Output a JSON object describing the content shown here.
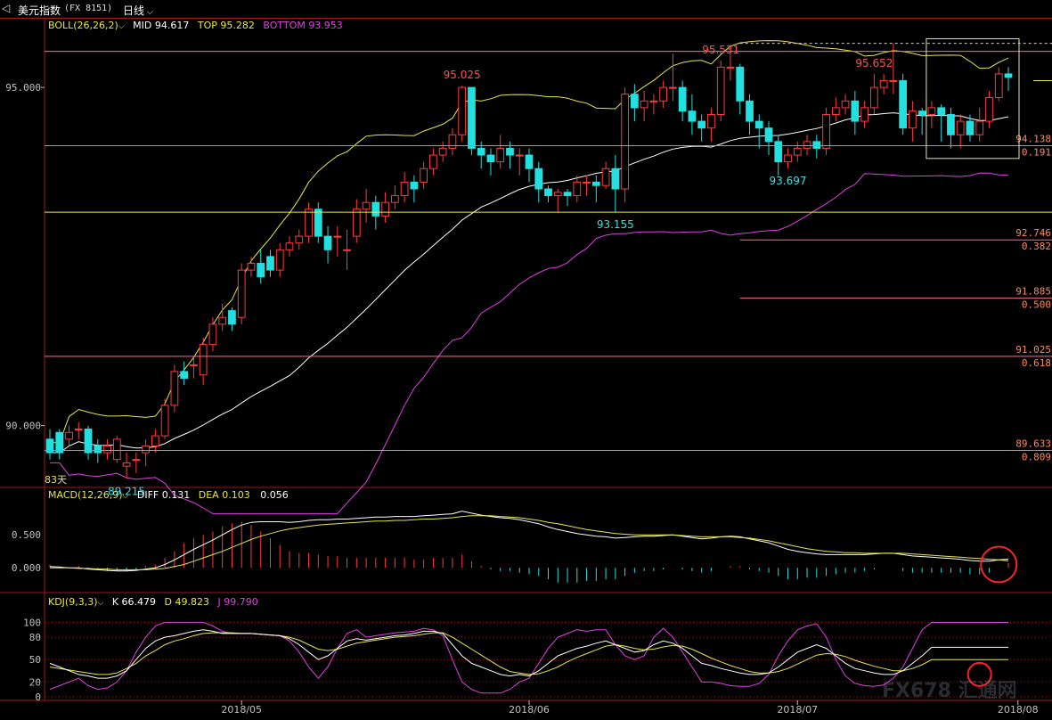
{
  "header": {
    "back_icon": "back-arrow-icon",
    "title": "美元指数",
    "code": "(FX 8151)",
    "period": "日线",
    "period_icon": "chevron-down-icon"
  },
  "boll": {
    "label": "BOLL(26,26,2)",
    "mid_label": "MID",
    "mid": "94.617",
    "top_label": "TOP",
    "top": "95.282",
    "bottom_label": "BOTTOM",
    "bottom": "93.953"
  },
  "macd": {
    "label": "MACD(12,26,9)",
    "diff_label": "DIFF",
    "diff": "0.131",
    "dea_label": "DEA",
    "dea": "0.103",
    "macd_value": "0.056"
  },
  "kdj": {
    "label": "KDJ(9,3,3)",
    "k_label": "K",
    "k": "66.479",
    "d_label": "D",
    "d": "49.823",
    "j_label": "J",
    "j": "99.790"
  },
  "colors": {
    "up": "#ff3a3a",
    "down": "#23e0e0",
    "mid": "#ffffff",
    "boll_band": "#e6e64a",
    "bottom": "#e040e0",
    "fib": "#ff6b8a",
    "axis": "#a01818",
    "tick": "#c0c0c0",
    "circle": "#ff2222"
  },
  "watermark": "FX678 汇通网",
  "count_label": "83天",
  "chart_data": [
    {
      "type": "candlestick",
      "title": "BOLL(26,26,2)",
      "ylim": [
        89.1,
        95.95
      ],
      "yticks": [
        "95.000",
        "90.000"
      ],
      "xticks": [
        "2018/05",
        "2018/06",
        "2018/07",
        "2018/08"
      ],
      "annotations": [
        {
          "label": "95.025",
          "index": 43,
          "kind": "high"
        },
        {
          "label": "95.531",
          "index": 70,
          "kind": "high"
        },
        {
          "label": "95.652",
          "index": 86,
          "kind": "high"
        },
        {
          "label": "93.155",
          "index": 59,
          "kind": "low"
        },
        {
          "label": "93.697",
          "index": 77,
          "kind": "low"
        },
        {
          "label": "89.215",
          "index": 8,
          "kind": "low"
        }
      ],
      "fibonacci": [
        {
          "price": "95.652",
          "ratio": "",
          "value": 95.652
        },
        {
          "price": "94.138",
          "ratio": "0.191",
          "value": 94.138
        },
        {
          "price": "93.155",
          "ratio": "",
          "value": 93.155
        },
        {
          "price": "92.746",
          "ratio": "0.382",
          "value": 92.746
        },
        {
          "price": "91.885",
          "ratio": "0.500",
          "value": 91.885
        },
        {
          "price": "91.025",
          "ratio": "0.618",
          "value": 91.025
        },
        {
          "price": "89.633",
          "ratio": "0.809",
          "value": 89.633
        }
      ],
      "series_open": [
        89.8,
        89.9,
        89.8,
        89.95,
        89.95,
        89.7,
        89.6,
        89.5,
        89.4,
        89.5,
        89.6,
        89.7,
        89.85,
        90.3,
        90.8,
        90.9,
        90.75,
        91.2,
        91.5,
        91.7,
        91.6,
        92.3,
        92.4,
        92.5,
        92.3,
        92.6,
        92.7,
        92.8,
        93.2,
        92.8,
        92.8,
        92.6,
        92.8,
        93.2,
        93.3,
        93.1,
        93.3,
        93.4,
        93.6,
        93.6,
        93.8,
        94.0,
        94.1,
        94.3,
        95.0,
        94.1,
        94.0,
        93.9,
        94.1,
        94.0,
        94.0,
        93.8,
        93.5,
        93.4,
        93.45,
        93.4,
        93.6,
        93.6,
        93.55,
        93.8,
        93.5,
        94.9,
        94.7,
        94.8,
        94.8,
        95.0,
        95.0,
        94.65,
        94.5,
        94.4,
        94.6,
        95.3,
        95.3,
        94.8,
        94.5,
        94.4,
        94.2,
        93.9,
        94.0,
        94.1,
        94.2,
        94.1,
        94.6,
        94.7,
        94.8,
        94.5,
        94.7,
        95.0,
        95.1,
        95.1,
        94.4,
        94.65,
        94.6,
        94.7,
        94.6,
        94.3,
        94.5,
        94.3,
        94.5,
        94.85,
        95.2
      ],
      "series_close": [
        89.6,
        89.6,
        89.9,
        89.95,
        89.6,
        89.6,
        89.7,
        89.8,
        89.45,
        89.5,
        89.7,
        89.85,
        90.3,
        90.8,
        90.7,
        90.9,
        91.2,
        91.5,
        91.6,
        91.5,
        92.3,
        92.4,
        92.2,
        92.3,
        92.6,
        92.7,
        92.8,
        93.2,
        92.8,
        92.6,
        92.8,
        92.6,
        93.2,
        93.3,
        93.1,
        93.3,
        93.4,
        93.6,
        93.5,
        93.8,
        94.0,
        94.1,
        94.3,
        95.0,
        94.1,
        94.0,
        93.9,
        94.1,
        94.0,
        94.0,
        93.8,
        93.5,
        93.4,
        93.45,
        93.4,
        93.6,
        93.6,
        93.55,
        93.8,
        93.5,
        94.9,
        94.7,
        94.8,
        94.8,
        95.0,
        95.0,
        94.65,
        94.5,
        94.4,
        94.6,
        95.3,
        95.3,
        94.8,
        94.5,
        94.4,
        94.2,
        93.9,
        94.0,
        94.1,
        94.2,
        94.1,
        94.6,
        94.7,
        94.8,
        94.5,
        94.7,
        95.0,
        95.1,
        95.1,
        94.4,
        94.65,
        94.6,
        94.7,
        94.6,
        94.3,
        94.5,
        94.3,
        94.5,
        94.85,
        95.2,
        95.15
      ],
      "series_high": [
        89.95,
        89.95,
        90.0,
        90.05,
        90.0,
        89.8,
        89.8,
        89.85,
        89.6,
        89.6,
        89.8,
        89.95,
        90.4,
        90.9,
        90.95,
        91.0,
        91.3,
        91.6,
        91.8,
        91.75,
        92.4,
        92.5,
        92.6,
        92.6,
        92.7,
        92.8,
        92.9,
        93.3,
        93.3,
        92.95,
        92.95,
        92.9,
        93.35,
        93.5,
        93.4,
        93.45,
        93.55,
        93.75,
        93.7,
        93.9,
        94.1,
        94.2,
        94.4,
        95.025,
        95.0,
        94.2,
        94.1,
        94.3,
        94.2,
        94.1,
        94.1,
        93.9,
        93.55,
        93.5,
        93.5,
        93.7,
        93.7,
        93.7,
        93.9,
        94.0,
        95.0,
        95.05,
        94.95,
        94.9,
        95.1,
        95.5,
        95.1,
        94.9,
        94.6,
        94.7,
        95.4,
        95.531,
        95.35,
        94.9,
        94.6,
        94.5,
        94.3,
        94.1,
        94.2,
        94.3,
        94.3,
        94.7,
        94.85,
        94.9,
        94.95,
        94.8,
        95.2,
        95.2,
        95.652,
        95.2,
        94.8,
        94.7,
        94.8,
        94.75,
        94.7,
        94.6,
        94.6,
        94.7,
        94.95,
        95.3,
        95.3
      ],
      "series_low": [
        89.5,
        89.5,
        89.7,
        89.8,
        89.5,
        89.45,
        89.5,
        89.45,
        89.215,
        89.3,
        89.4,
        89.6,
        89.8,
        90.2,
        90.6,
        90.7,
        90.6,
        91.1,
        91.4,
        91.4,
        91.5,
        92.2,
        92.1,
        92.2,
        92.2,
        92.5,
        92.6,
        92.7,
        92.7,
        92.4,
        92.5,
        92.3,
        92.7,
        93.0,
        92.9,
        93.0,
        93.2,
        93.3,
        93.3,
        93.5,
        93.7,
        93.9,
        94.0,
        94.2,
        94.0,
        93.8,
        93.7,
        93.8,
        93.8,
        93.7,
        93.6,
        93.3,
        93.3,
        93.155,
        93.25,
        93.3,
        93.4,
        93.3,
        93.5,
        93.155,
        93.3,
        94.5,
        94.5,
        94.6,
        94.7,
        94.8,
        94.5,
        94.3,
        94.2,
        94.2,
        94.5,
        95.1,
        94.6,
        94.3,
        94.1,
        94.0,
        93.697,
        93.8,
        93.9,
        94.0,
        93.95,
        94.0,
        94.5,
        94.6,
        94.3,
        94.4,
        94.6,
        94.9,
        94.9,
        94.3,
        94.2,
        94.3,
        94.4,
        94.2,
        94.1,
        94.1,
        94.2,
        94.2,
        94.4,
        94.8,
        94.95
      ]
    },
    {
      "type": "bar+line",
      "title": "MACD(12,26,9)",
      "ylim": [
        -0.35,
        0.95
      ],
      "yticks": [
        "0.500",
        "0.000"
      ],
      "series": [
        {
          "name": "DIFF",
          "values": [
            0.02,
            0.01,
            0.0,
            0.0,
            -0.02,
            -0.03,
            -0.04,
            -0.05,
            -0.05,
            -0.04,
            -0.02,
            0.0,
            0.05,
            0.12,
            0.2,
            0.28,
            0.35,
            0.42,
            0.5,
            0.58,
            0.65,
            0.69,
            0.7,
            0.7,
            0.7,
            0.69,
            0.7,
            0.72,
            0.73,
            0.73,
            0.74,
            0.74,
            0.75,
            0.76,
            0.77,
            0.77,
            0.78,
            0.78,
            0.78,
            0.79,
            0.8,
            0.81,
            0.82,
            0.86,
            0.83,
            0.8,
            0.78,
            0.76,
            0.75,
            0.73,
            0.7,
            0.67,
            0.62,
            0.58,
            0.55,
            0.52,
            0.5,
            0.48,
            0.47,
            0.45,
            0.46,
            0.47,
            0.48,
            0.48,
            0.49,
            0.5,
            0.48,
            0.46,
            0.44,
            0.45,
            0.47,
            0.48,
            0.47,
            0.44,
            0.41,
            0.38,
            0.33,
            0.28,
            0.25,
            0.23,
            0.21,
            0.2,
            0.2,
            0.2,
            0.2,
            0.2,
            0.21,
            0.22,
            0.22,
            0.2,
            0.18,
            0.17,
            0.16,
            0.15,
            0.14,
            0.13,
            0.11,
            0.1,
            0.1,
            0.12,
            0.131
          ]
        },
        {
          "name": "DEA",
          "values": [
            0.0,
            0.0,
            0.0,
            -0.01,
            -0.01,
            -0.02,
            -0.02,
            -0.03,
            -0.03,
            -0.03,
            -0.03,
            -0.02,
            -0.01,
            0.02,
            0.05,
            0.1,
            0.15,
            0.2,
            0.25,
            0.31,
            0.37,
            0.43,
            0.48,
            0.52,
            0.56,
            0.59,
            0.61,
            0.63,
            0.65,
            0.66,
            0.67,
            0.68,
            0.69,
            0.7,
            0.71,
            0.71,
            0.72,
            0.72,
            0.73,
            0.74,
            0.74,
            0.75,
            0.76,
            0.78,
            0.79,
            0.79,
            0.79,
            0.78,
            0.77,
            0.76,
            0.74,
            0.72,
            0.69,
            0.67,
            0.64,
            0.61,
            0.58,
            0.56,
            0.54,
            0.52,
            0.51,
            0.5,
            0.5,
            0.5,
            0.5,
            0.5,
            0.49,
            0.48,
            0.47,
            0.47,
            0.47,
            0.47,
            0.46,
            0.45,
            0.43,
            0.41,
            0.38,
            0.35,
            0.32,
            0.29,
            0.27,
            0.25,
            0.24,
            0.23,
            0.23,
            0.22,
            0.22,
            0.22,
            0.22,
            0.22,
            0.21,
            0.2,
            0.19,
            0.18,
            0.17,
            0.16,
            0.15,
            0.14,
            0.13,
            0.12,
            0.103
          ]
        }
      ]
    },
    {
      "type": "line",
      "title": "KDJ(9,3,3)",
      "ylim": [
        0,
        110
      ],
      "yticks": [
        "100",
        "80",
        "50",
        "20",
        "0"
      ],
      "series": [
        {
          "name": "K",
          "values": [
            45,
            40,
            35,
            30,
            28,
            25,
            25,
            28,
            35,
            50,
            65,
            75,
            80,
            82,
            85,
            88,
            90,
            88,
            85,
            85,
            85,
            85,
            84,
            83,
            82,
            78,
            70,
            60,
            50,
            55,
            65,
            75,
            78,
            76,
            78,
            80,
            82,
            83,
            85,
            88,
            88,
            85,
            70,
            55,
            45,
            40,
            35,
            30,
            28,
            30,
            28,
            35,
            45,
            55,
            60,
            65,
            68,
            72,
            75,
            70,
            65,
            60,
            62,
            70,
            75,
            72,
            65,
            55,
            45,
            42,
            38,
            35,
            32,
            30,
            30,
            32,
            40,
            50,
            60,
            65,
            70,
            65,
            55,
            45,
            38,
            35,
            32,
            30,
            30,
            35,
            45,
            55,
            66.479,
            66.479,
            66.479,
            66.479,
            66.479,
            66.479,
            66.479,
            66.479,
            66.479
          ]
        },
        {
          "name": "D",
          "values": [
            40,
            38,
            36,
            34,
            32,
            30,
            30,
            32,
            38,
            45,
            55,
            62,
            70,
            75,
            78,
            82,
            85,
            86,
            86,
            86,
            85,
            85,
            84,
            83,
            82,
            80,
            76,
            70,
            64,
            62,
            64,
            68,
            72,
            74,
            76,
            78,
            80,
            81,
            82,
            84,
            86,
            86,
            80,
            72,
            64,
            56,
            48,
            40,
            34,
            32,
            30,
            31,
            35,
            40,
            47,
            53,
            58,
            63,
            68,
            70,
            68,
            65,
            63,
            64,
            67,
            69,
            68,
            64,
            58,
            52,
            47,
            42,
            38,
            34,
            32,
            32,
            34,
            38,
            44,
            50,
            56,
            58,
            57,
            54,
            49,
            45,
            41,
            38,
            35,
            35,
            38,
            43,
            49.823,
            49.823,
            49.823,
            49.823,
            49.823,
            49.823,
            49.823,
            49.823,
            49.823
          ]
        },
        {
          "name": "J",
          "values": [
            10,
            15,
            20,
            25,
            15,
            10,
            12,
            20,
            35,
            60,
            80,
            95,
            100,
            100,
            100,
            100,
            100,
            95,
            88,
            85,
            85,
            85,
            84,
            83,
            82,
            75,
            60,
            40,
            25,
            40,
            65,
            85,
            90,
            80,
            82,
            84,
            86,
            87,
            88,
            92,
            90,
            82,
            50,
            20,
            10,
            5,
            5,
            5,
            10,
            20,
            25,
            45,
            65,
            80,
            85,
            90,
            88,
            90,
            90,
            70,
            55,
            50,
            55,
            80,
            92,
            80,
            60,
            40,
            20,
            20,
            18,
            15,
            14,
            14,
            18,
            30,
            55,
            75,
            90,
            95,
            98,
            80,
            50,
            28,
            18,
            15,
            14,
            16,
            25,
            40,
            65,
            90,
            99.79,
            99.79,
            99.79,
            99.79,
            99.79,
            99.79,
            99.79,
            99.79,
            99.79
          ]
        }
      ]
    }
  ]
}
